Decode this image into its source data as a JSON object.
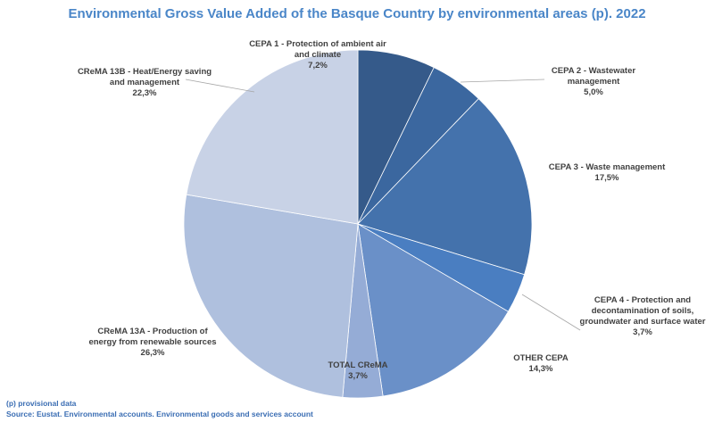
{
  "chart_data": {
    "type": "pie",
    "title": "Environmental Gross Value Added of the Basque Country by environmental areas (p). 2022",
    "slices": [
      {
        "name": "CEPA 1 - Protection of ambient air and climate",
        "label_lines": [
          "CEPA 1 - Protection of ambient air",
          "and climate"
        ],
        "value": 7.2,
        "value_label": "7,2%",
        "color": "#355a8a"
      },
      {
        "name": "CEPA 2 - Wastewater management",
        "label_lines": [
          "CEPA 2 - Wastewater",
          "management"
        ],
        "value": 5.0,
        "value_label": "5,0%",
        "color": "#3b679f"
      },
      {
        "name": "CEPA 3 - Waste management",
        "label_lines": [
          "CEPA 3 - Waste management"
        ],
        "value": 17.5,
        "value_label": "17,5%",
        "color": "#4472ac"
      },
      {
        "name": "CEPA 4 - Protection and decontamination of soils, groundwater and surface water",
        "label_lines": [
          "CEPA 4 - Protection and",
          "decontamination of soils,",
          "groundwater and surface water"
        ],
        "value": 3.7,
        "value_label": "3,7%",
        "color": "#4a7ec1"
      },
      {
        "name": "OTHER CEPA",
        "label_lines": [
          "OTHER CEPA"
        ],
        "value": 14.3,
        "value_label": "14,3%",
        "color": "#6a90c8"
      },
      {
        "name": "TOTAL CReMA",
        "label_lines": [
          "TOTAL CReMA"
        ],
        "value": 3.7,
        "value_label": "3,7%",
        "color": "#95acd6"
      },
      {
        "name": "CReMA 13A - Production of energy from renewable sources",
        "label_lines": [
          "CReMA 13A - Production of",
          "energy from renewable sources"
        ],
        "value": 26.3,
        "value_label": "26,3%",
        "color": "#afc0de"
      },
      {
        "name": "CReMA 13B - Heat/Energy saving and management",
        "label_lines": [
          "CReMA 13B - Heat/Energy saving",
          "and management"
        ],
        "value": 22.3,
        "value_label": "22,3%",
        "color": "#c8d2e6"
      }
    ]
  },
  "notes": {
    "provisional": "(p) provisional data",
    "source": "Source: Eustat. Environmental accounts. Environmental goods and services account"
  }
}
